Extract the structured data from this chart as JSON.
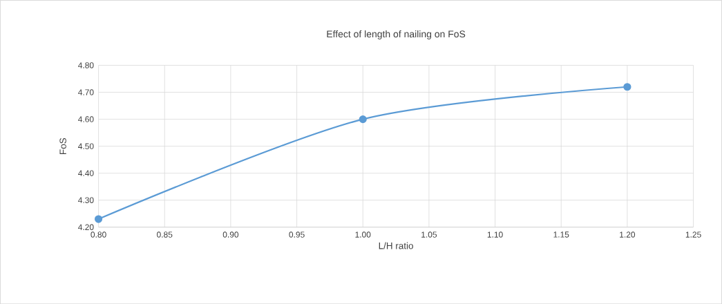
{
  "chart_data": {
    "type": "line",
    "title": "Effect of length of nailing on FoS",
    "xlabel": "L/H ratio",
    "ylabel": "FoS",
    "x": [
      0.8,
      1.0,
      1.2
    ],
    "series": [
      {
        "color": "#5b9bd5",
        "values": [
          4.23,
          4.6,
          4.72
        ]
      }
    ],
    "xlim": [
      0.8,
      1.25
    ],
    "xticks": [
      {
        "value": 0.8,
        "label": "0.80"
      },
      {
        "value": 0.85,
        "label": "0.85"
      },
      {
        "value": 0.9,
        "label": "0.90"
      },
      {
        "value": 0.95,
        "label": "0.95"
      },
      {
        "value": 1.0,
        "label": "1.00"
      },
      {
        "value": 1.05,
        "label": "1.05"
      },
      {
        "value": 1.1,
        "label": "1.10"
      },
      {
        "value": 1.15,
        "label": "1.15"
      },
      {
        "value": 1.2,
        "label": "1.20"
      },
      {
        "value": 1.25,
        "label": "1.25"
      }
    ],
    "ylim": [
      4.2,
      4.8
    ],
    "yticks": [
      {
        "value": 4.2,
        "label": "4.20"
      },
      {
        "value": 4.3,
        "label": "4.30"
      },
      {
        "value": 4.4,
        "label": "4.40"
      },
      {
        "value": 4.5,
        "label": "4.50"
      },
      {
        "value": 4.6,
        "label": "4.60"
      },
      {
        "value": 4.7,
        "label": "4.70"
      },
      {
        "value": 4.8,
        "label": "4.80"
      }
    ],
    "grid": true,
    "marker": "circle",
    "line_style": "solid"
  }
}
